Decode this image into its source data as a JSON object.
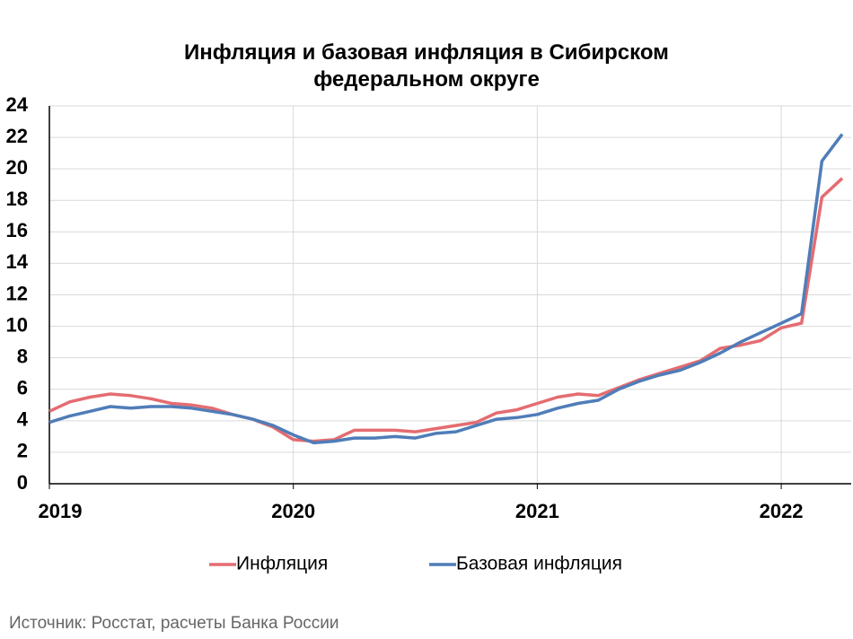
{
  "chart_data": {
    "type": "line",
    "title": "Инфляция и базовая инфляция в Сибирском федеральном округе",
    "categories": [
      "2019",
      null,
      null,
      null,
      null,
      null,
      null,
      null,
      null,
      null,
      null,
      null,
      "2020",
      null,
      null,
      null,
      null,
      null,
      null,
      null,
      null,
      null,
      null,
      null,
      "2021",
      null,
      null,
      null,
      null,
      null,
      null,
      null,
      null,
      null,
      null,
      null,
      "2022",
      null,
      null,
      null
    ],
    "series": [
      {
        "name": "Инфляция",
        "color": "#e46c71",
        "values": [
          4.6,
          5.2,
          5.5,
          5.7,
          5.6,
          5.4,
          5.1,
          5.0,
          4.8,
          4.4,
          4.1,
          3.6,
          2.8,
          2.7,
          2.8,
          3.4,
          3.4,
          3.4,
          3.3,
          3.5,
          3.7,
          3.9,
          4.5,
          4.7,
          5.1,
          5.5,
          5.7,
          5.6,
          6.1,
          6.6,
          7.0,
          7.4,
          7.8,
          8.6,
          8.8,
          9.1,
          9.9,
          10.2,
          18.2,
          19.4
        ]
      },
      {
        "name": "Базовая инфляция",
        "color": "#4f7db8",
        "values": [
          3.9,
          4.3,
          4.6,
          4.9,
          4.8,
          4.9,
          4.9,
          4.8,
          4.6,
          4.4,
          4.1,
          3.7,
          3.1,
          2.6,
          2.7,
          2.9,
          2.9,
          3.0,
          2.9,
          3.2,
          3.3,
          3.7,
          4.1,
          4.2,
          4.4,
          4.8,
          5.1,
          5.3,
          6.0,
          6.5,
          6.9,
          7.2,
          7.7,
          8.3,
          9.0,
          9.6,
          10.2,
          10.8,
          20.5,
          22.2
        ]
      }
    ],
    "ylim": [
      0,
      24
    ],
    "yticks": [
      0,
      2,
      4,
      6,
      8,
      10,
      12,
      14,
      16,
      18,
      20,
      22,
      24
    ],
    "grid": true,
    "legend": "bottom",
    "source": "Источник: Росстат, расчеты Банка России"
  }
}
